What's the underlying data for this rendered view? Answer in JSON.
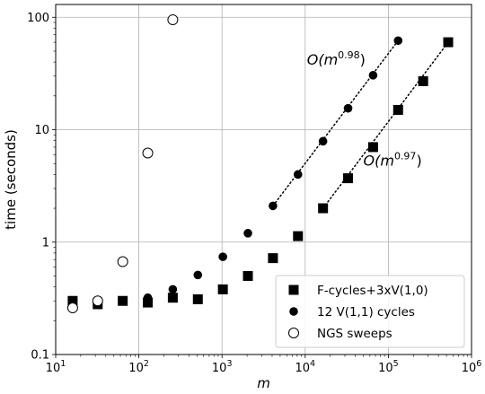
{
  "chart_data": {
    "type": "scatter",
    "xlabel": "m",
    "ylabel": "time (seconds)",
    "xscale": "log",
    "yscale": "log",
    "xlim": [
      10,
      1000000
    ],
    "ylim": [
      0.1,
      130
    ],
    "grid": true,
    "legend_position": "bottom-right",
    "x_ticks": [
      {
        "value": 10,
        "base": "10",
        "exp": "1"
      },
      {
        "value": 100,
        "base": "10",
        "exp": "2"
      },
      {
        "value": 1000,
        "base": "10",
        "exp": "3"
      },
      {
        "value": 10000,
        "base": "10",
        "exp": "4"
      },
      {
        "value": 100000,
        "base": "10",
        "exp": "5"
      },
      {
        "value": 1000000,
        "base": "10",
        "exp": "6"
      }
    ],
    "y_ticks": [
      {
        "value": 0.1,
        "label": "0.1"
      },
      {
        "value": 1,
        "label": "1"
      },
      {
        "value": 10,
        "label": "10"
      },
      {
        "value": 100,
        "label": "100"
      }
    ],
    "series": [
      {
        "name": "F-cycles+3xV(1,0)",
        "marker": "square",
        "color": "#000000",
        "x": [
          16,
          32,
          64,
          128,
          256,
          512,
          1024,
          2048,
          4096,
          8192,
          16384,
          32768,
          65536,
          131072,
          262144,
          524288
        ],
        "y": [
          0.3,
          0.28,
          0.3,
          0.29,
          0.32,
          0.31,
          0.38,
          0.5,
          0.72,
          1.13,
          2.0,
          3.7,
          7.0,
          15.0,
          27.0,
          60.0
        ]
      },
      {
        "name": "12 V(1,1) cycles",
        "marker": "circle",
        "color": "#000000",
        "x": [
          16,
          32,
          64,
          128,
          256,
          512,
          1024,
          2048,
          4096,
          8192,
          16384,
          32768,
          65536,
          131072
        ],
        "y": [
          0.27,
          0.3,
          0.3,
          0.32,
          0.38,
          0.51,
          0.74,
          1.2,
          2.1,
          4.0,
          7.9,
          15.5,
          30.5,
          62.0
        ]
      },
      {
        "name": "NGS sweeps",
        "marker": "open-circle",
        "color": "#000000",
        "x": [
          16,
          32,
          64,
          128,
          256
        ],
        "y": [
          0.26,
          0.3,
          0.67,
          6.2,
          95.0
        ]
      }
    ],
    "fit_lines": [
      {
        "x": [
          4096,
          131072
        ],
        "y": [
          2.1,
          62.0
        ],
        "label_base": "O(m",
        "label_exp": "0.98",
        "label_close": ")",
        "label_at": [
          10500,
          38
        ]
      },
      {
        "x": [
          16384,
          524288
        ],
        "y": [
          2.0,
          60.0
        ],
        "label_base": "O(m",
        "label_exp": "0.97",
        "label_close": ")",
        "label_at": [
          50000,
          4.8
        ]
      }
    ]
  }
}
